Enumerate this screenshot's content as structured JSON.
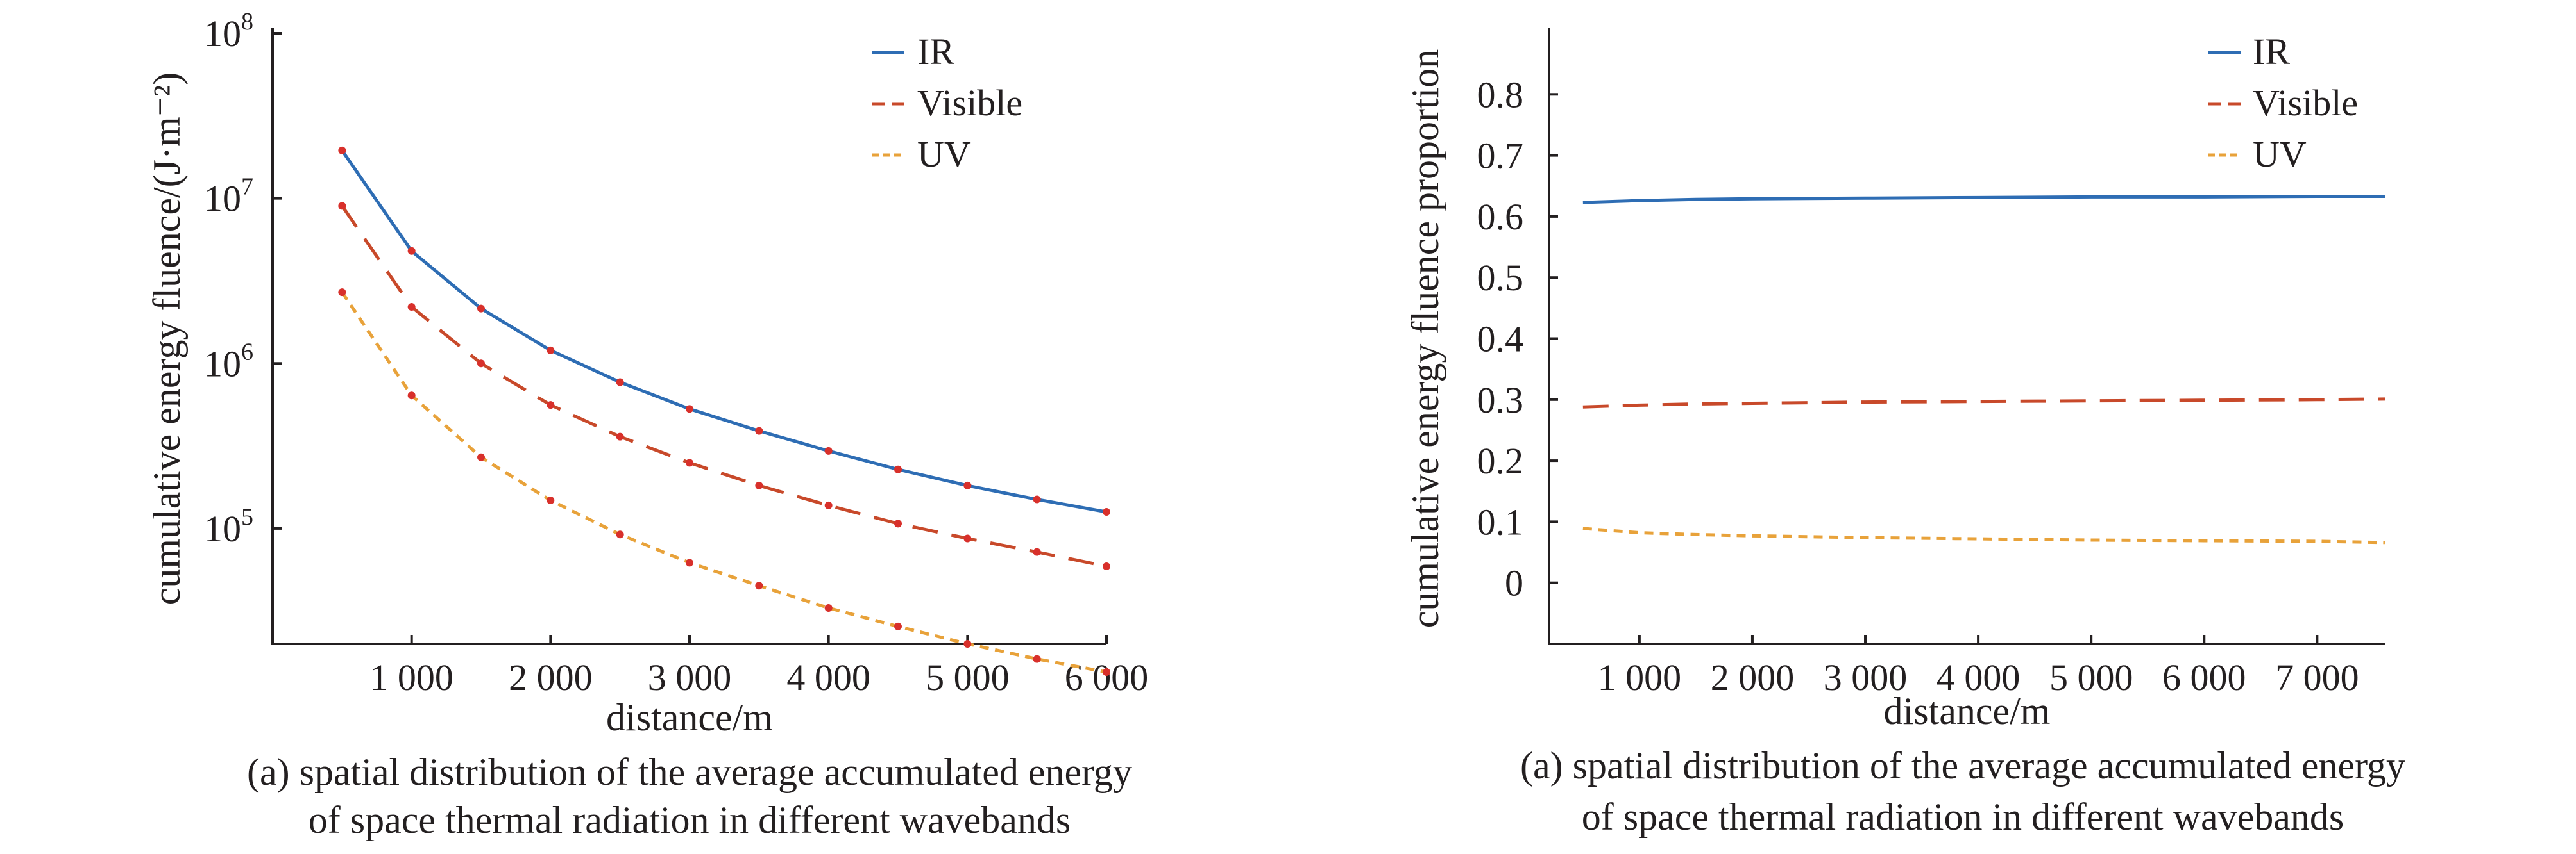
{
  "chart_data": [
    {
      "type": "line",
      "title": "",
      "xlabel": "distance/m",
      "ylabel": "cumulative energy fluence/(J·m⁻²)",
      "y_scale": "log",
      "xlim": [
        0,
        6000
      ],
      "ylim": [
        20000,
        100000000
      ],
      "x_ticks": [
        1000,
        2000,
        3000,
        4000,
        5000,
        6000
      ],
      "x_tick_labels": [
        "1 000",
        "2 000",
        "3 000",
        "4 000",
        "5 000",
        "6 000"
      ],
      "y_ticks": [
        100000,
        1000000,
        10000000,
        100000000
      ],
      "y_tick_labels": [
        {
          "base": "10",
          "exp": "5"
        },
        {
          "base": "10",
          "exp": "6"
        },
        {
          "base": "10",
          "exp": "7"
        },
        {
          "base": "10",
          "exp": "8"
        }
      ],
      "grid": false,
      "legend_position": "top-right",
      "x": [
        500,
        1000,
        1500,
        2000,
        2500,
        3000,
        3500,
        4000,
        4500,
        5000,
        5500,
        6000
      ],
      "series": [
        {
          "name": "IR",
          "color": "#2e6db4",
          "dash": "solid",
          "values": [
            19500000,
            4800000,
            2150000,
            1200000,
            770000,
            530000,
            390000,
            295000,
            228000,
            182000,
            150000,
            126000
          ]
        },
        {
          "name": "Visible",
          "color": "#c8492a",
          "dash": "long-dash",
          "values": [
            9000000,
            2200000,
            1000000,
            560000,
            360000,
            250000,
            182000,
            138000,
            107000,
            87000,
            72000,
            59000
          ]
        },
        {
          "name": "UV",
          "color": "#e8a23a",
          "dash": "short-dash",
          "values": [
            2700000,
            640000,
            270000,
            148000,
            92000,
            62000,
            45000,
            33000,
            25500,
            20000,
            16200,
            13500
          ]
        }
      ],
      "marker_color": "#d8302b",
      "caption": [
        "(a) spatial distribution of the average accumulated energy",
        "of space thermal radiation in different wavebands"
      ]
    },
    {
      "type": "line",
      "title": "",
      "xlabel": "distance/m",
      "ylabel": "cumulative energy fluence proportion",
      "y_scale": "linear",
      "xlim": [
        200,
        7600
      ],
      "ylim": [
        -0.1,
        0.9
      ],
      "x_ticks": [
        1000,
        2000,
        3000,
        4000,
        5000,
        6000,
        7000
      ],
      "x_tick_labels": [
        "1 000",
        "2 000",
        "3 000",
        "4 000",
        "5 000",
        "6 000",
        "7 000"
      ],
      "y_ticks": [
        0,
        0.1,
        0.2,
        0.3,
        0.4,
        0.5,
        0.6,
        0.7,
        0.8
      ],
      "y_tick_labels": [
        "0",
        "0.1",
        "0.2",
        "0.3",
        "0.4",
        "0.5",
        "0.6",
        "0.7",
        "0.8"
      ],
      "grid": false,
      "legend_position": "top-right",
      "x": [
        500,
        1000,
        1500,
        2000,
        3000,
        4000,
        5000,
        6000,
        7000,
        7600
      ],
      "series": [
        {
          "name": "IR",
          "color": "#2e6db4",
          "dash": "solid",
          "values": [
            0.623,
            0.626,
            0.628,
            0.629,
            0.63,
            0.631,
            0.632,
            0.632,
            0.633,
            0.633
          ]
        },
        {
          "name": "Visible",
          "color": "#c8492a",
          "dash": "long-dash",
          "values": [
            0.288,
            0.291,
            0.293,
            0.294,
            0.296,
            0.297,
            0.298,
            0.299,
            0.3,
            0.301
          ]
        },
        {
          "name": "UV",
          "color": "#e8a23a",
          "dash": "short-dash",
          "values": [
            0.089,
            0.082,
            0.079,
            0.077,
            0.074,
            0.072,
            0.07,
            0.069,
            0.068,
            0.066
          ]
        }
      ],
      "caption": [
        "(a) spatial distribution of the average accumulated energy",
        "of space thermal radiation in different wavebands"
      ]
    }
  ]
}
